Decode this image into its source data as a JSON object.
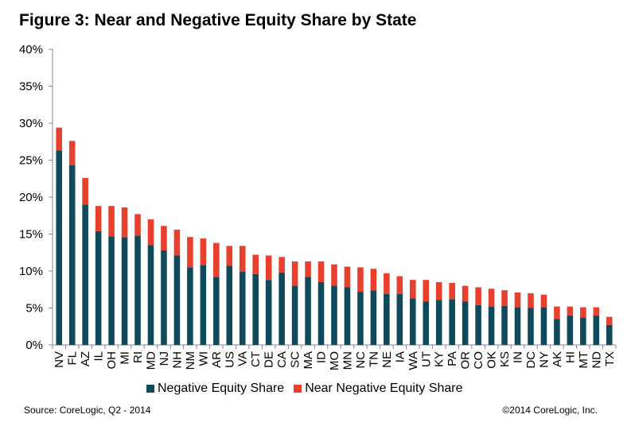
{
  "title": "Figure 3: Near and Negative Equity Share by State",
  "footer": {
    "source": "Source: CoreLogic, Q2 - 2014",
    "copyright": "©2014 CoreLogic, Inc."
  },
  "colors": {
    "negative": "#0f4a5c",
    "near_negative": "#e8402c",
    "axis": "#888888",
    "text": "#000000"
  },
  "chart_data": {
    "type": "bar",
    "stacked": true,
    "title": "Figure 3: Near and Negative Equity Share by State",
    "xlabel": "",
    "ylabel": "",
    "ylim": [
      0,
      40
    ],
    "yticks": [
      "0%",
      "5%",
      "10%",
      "15%",
      "20%",
      "25%",
      "30%",
      "35%",
      "40%"
    ],
    "grid": false,
    "legend_position": "bottom",
    "categories": [
      "NV",
      "FL",
      "AZ",
      "IL",
      "OH",
      "MI",
      "RI",
      "MD",
      "NJ",
      "NH",
      "NM",
      "WI",
      "AR",
      "US",
      "VA",
      "CT",
      "DE",
      "CA",
      "SC",
      "MA",
      "ID",
      "MO",
      "MN",
      "NC",
      "TN",
      "NE",
      "IA",
      "WA",
      "UT",
      "KY",
      "PA",
      "OR",
      "CO",
      "OK",
      "KS",
      "IN",
      "DC",
      "NY",
      "AK",
      "HI",
      "MT",
      "ND",
      "TX"
    ],
    "series": [
      {
        "name": "Negative Equity Share",
        "color": "#0f4a5c",
        "values": [
          26.3,
          24.3,
          19.0,
          15.4,
          14.7,
          14.6,
          14.8,
          13.5,
          12.8,
          12.1,
          10.5,
          10.8,
          9.2,
          10.7,
          9.9,
          9.6,
          8.8,
          9.8,
          8.0,
          9.2,
          8.5,
          8.0,
          7.8,
          7.2,
          7.4,
          6.9,
          6.9,
          6.3,
          5.9,
          6.1,
          6.2,
          5.9,
          5.4,
          5.2,
          5.3,
          5.1,
          5.0,
          5.1,
          3.5,
          4.0,
          3.7,
          4.0,
          2.7
        ]
      },
      {
        "name": "Near Negative Equity Share",
        "color": "#e8402c",
        "values": [
          3.1,
          3.3,
          3.6,
          3.4,
          4.1,
          4.0,
          2.9,
          3.5,
          3.3,
          3.5,
          4.1,
          3.6,
          4.6,
          2.7,
          3.5,
          2.6,
          3.3,
          2.1,
          3.3,
          2.1,
          2.8,
          2.9,
          2.8,
          3.3,
          2.9,
          2.8,
          2.4,
          2.5,
          2.9,
          2.4,
          2.2,
          2.1,
          2.4,
          2.4,
          2.1,
          2.0,
          2.0,
          1.7,
          1.7,
          1.2,
          1.4,
          1.1,
          1.1
        ]
      }
    ]
  }
}
